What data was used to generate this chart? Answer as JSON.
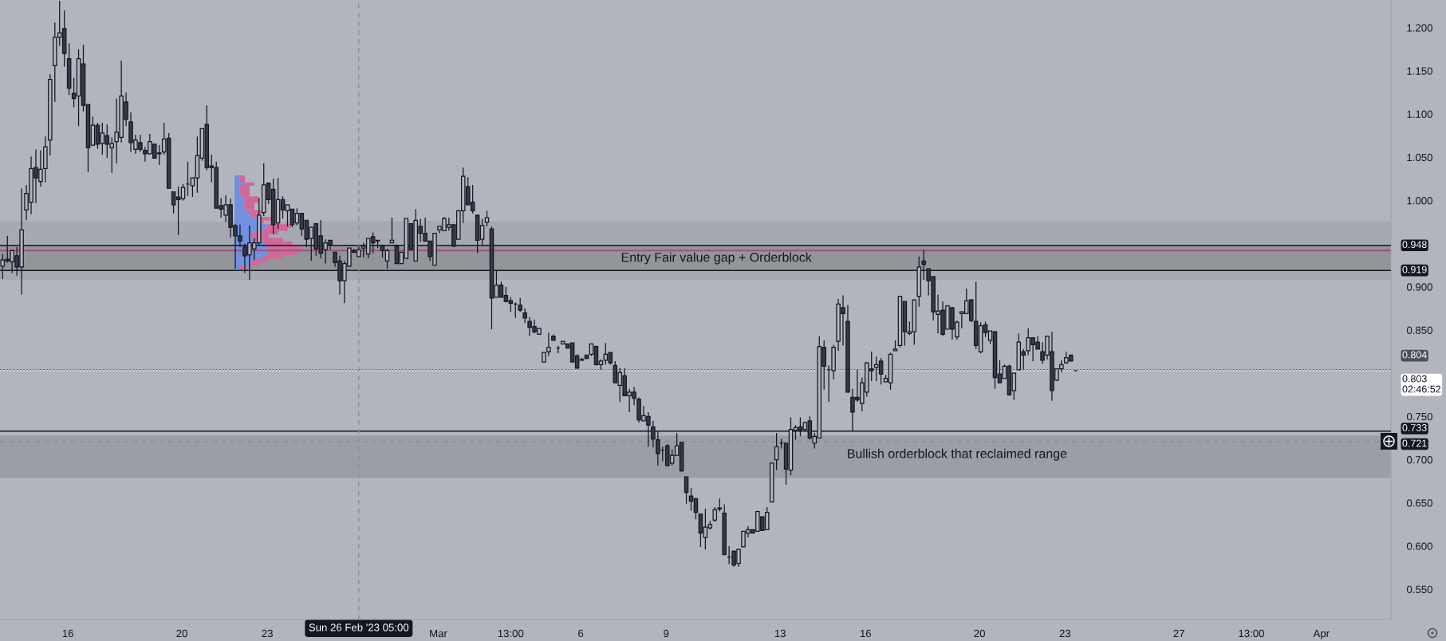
{
  "chart_data": {
    "type": "candlestick",
    "x": [
      "2023-02-13T17:00",
      "2023-02-13T21:00",
      "2023-02-14T01:00",
      "2023-02-14T05:00",
      "2023-02-14T09:00",
      "2023-02-14T13:00",
      "2023-02-14T17:00",
      "2023-02-14T21:00",
      "2023-02-15T01:00",
      "2023-02-15T05:00",
      "2023-02-15T09:00",
      "2023-02-15T13:00",
      "2023-02-15T17:00",
      "2023-02-15T21:00",
      "2023-02-16T01:00",
      "2023-02-16T05:00",
      "2023-02-16T09:00",
      "2023-02-16T13:00",
      "2023-02-16T17:00",
      "2023-02-16T21:00",
      "2023-02-17T01:00",
      "2023-02-17T05:00",
      "2023-02-17T09:00",
      "2023-02-17T13:00",
      "2023-02-17T17:00",
      "2023-02-17T21:00",
      "2023-02-18T01:00",
      "2023-02-18T05:00",
      "2023-02-18T09:00",
      "2023-02-18T13:00",
      "2023-02-18T17:00",
      "2023-02-18T21:00",
      "2023-02-19T01:00",
      "2023-02-19T05:00",
      "2023-02-19T09:00",
      "2023-02-19T13:00",
      "2023-02-19T17:00",
      "2023-02-19T21:00",
      "2023-02-20T01:00",
      "2023-02-20T05:00",
      "2023-02-20T09:00",
      "2023-02-20T13:00",
      "2023-02-20T17:00",
      "2023-02-20T21:00",
      "2023-02-21T01:00",
      "2023-02-21T05:00",
      "2023-02-21T09:00",
      "2023-02-21T13:00",
      "2023-02-21T17:00",
      "2023-02-21T21:00",
      "2023-02-22T01:00",
      "2023-02-22T05:00",
      "2023-02-22T09:00",
      "2023-02-22T13:00",
      "2023-02-22T17:00",
      "2023-02-22T21:00",
      "2023-02-23T01:00",
      "2023-02-23T05:00",
      "2023-02-23T09:00",
      "2023-02-23T13:00",
      "2023-02-23T17:00",
      "2023-02-23T21:00",
      "2023-02-24T01:00",
      "2023-02-24T05:00",
      "2023-02-24T09:00",
      "2023-02-24T13:00",
      "2023-02-24T17:00",
      "2023-02-24T21:00",
      "2023-02-25T01:00",
      "2023-02-25T05:00",
      "2023-02-25T09:00",
      "2023-02-25T13:00",
      "2023-02-25T17:00",
      "2023-02-25T21:00",
      "2023-02-26T01:00",
      "2023-02-26T05:00",
      "2023-02-26T09:00",
      "2023-02-26T13:00",
      "2023-02-26T17:00",
      "2023-02-26T21:00",
      "2023-02-27T01:00",
      "2023-02-27T05:00",
      "2023-02-27T09:00",
      "2023-02-27T13:00",
      "2023-02-27T17:00",
      "2023-02-27T21:00",
      "2023-02-28T01:00",
      "2023-02-28T05:00",
      "2023-02-28T09:00",
      "2023-02-28T13:00",
      "2023-02-28T17:00",
      "2023-02-28T21:00",
      "2023-03-01T01:00",
      "2023-03-01T05:00",
      "2023-03-01T09:00",
      "2023-03-01T13:00",
      "2023-03-01T17:00",
      "2023-03-01T21:00",
      "2023-03-02T01:00",
      "2023-03-02T05:00",
      "2023-03-02T09:00",
      "2023-03-02T13:00",
      "2023-03-02T17:00",
      "2023-03-02T21:00",
      "2023-03-03T01:00",
      "2023-03-03T05:00",
      "2023-03-03T09:00",
      "2023-03-03T13:00",
      "2023-03-03T17:00",
      "2023-03-03T21:00",
      "2023-03-04T01:00",
      "2023-03-04T05:00",
      "2023-03-04T09:00",
      "2023-03-04T13:00",
      "2023-03-04T17:00",
      "2023-03-04T21:00",
      "2023-03-05T01:00",
      "2023-03-05T05:00",
      "2023-03-05T09:00",
      "2023-03-05T13:00",
      "2023-03-05T17:00",
      "2023-03-05T21:00",
      "2023-03-06T01:00",
      "2023-03-06T05:00",
      "2023-03-06T09:00",
      "2023-03-06T13:00",
      "2023-03-06T17:00",
      "2023-03-06T21:00",
      "2023-03-07T01:00",
      "2023-03-07T05:00",
      "2023-03-07T09:00",
      "2023-03-07T13:00",
      "2023-03-07T17:00",
      "2023-03-07T21:00",
      "2023-03-08T01:00",
      "2023-03-08T05:00",
      "2023-03-08T09:00",
      "2023-03-08T13:00",
      "2023-03-08T17:00",
      "2023-03-08T21:00",
      "2023-03-09T01:00",
      "2023-03-09T05:00",
      "2023-03-09T09:00",
      "2023-03-09T13:00",
      "2023-03-09T17:00",
      "2023-03-09T21:00",
      "2023-03-10T01:00",
      "2023-03-10T05:00",
      "2023-03-10T09:00",
      "2023-03-10T13:00",
      "2023-03-10T17:00",
      "2023-03-10T21:00",
      "2023-03-11T01:00",
      "2023-03-11T05:00",
      "2023-03-11T09:00",
      "2023-03-11T13:00",
      "2023-03-11T17:00",
      "2023-03-11T21:00",
      "2023-03-12T01:00",
      "2023-03-12T05:00",
      "2023-03-12T09:00",
      "2023-03-12T13:00",
      "2023-03-12T17:00",
      "2023-03-12T21:00",
      "2023-03-13T01:00",
      "2023-03-13T05:00",
      "2023-03-13T09:00",
      "2023-03-13T13:00",
      "2023-03-13T17:00",
      "2023-03-13T21:00",
      "2023-03-14T01:00",
      "2023-03-14T05:00",
      "2023-03-14T09:00",
      "2023-03-14T13:00",
      "2023-03-14T17:00",
      "2023-03-14T21:00",
      "2023-03-15T01:00",
      "2023-03-15T05:00",
      "2023-03-15T09:00",
      "2023-03-15T13:00",
      "2023-03-15T17:00",
      "2023-03-15T21:00",
      "2023-03-16T01:00",
      "2023-03-16T05:00",
      "2023-03-16T09:00",
      "2023-03-16T13:00",
      "2023-03-16T17:00",
      "2023-03-16T21:00",
      "2023-03-17T01:00",
      "2023-03-17T05:00",
      "2023-03-17T09:00",
      "2023-03-17T13:00",
      "2023-03-17T17:00",
      "2023-03-17T21:00",
      "2023-03-18T01:00",
      "2023-03-18T05:00",
      "2023-03-18T09:00",
      "2023-03-18T13:00",
      "2023-03-18T17:00",
      "2023-03-18T21:00",
      "2023-03-19T01:00",
      "2023-03-19T05:00",
      "2023-03-19T09:00",
      "2023-03-19T13:00",
      "2023-03-19T17:00",
      "2023-03-19T21:00",
      "2023-03-20T01:00",
      "2023-03-20T05:00",
      "2023-03-20T09:00",
      "2023-03-20T13:00",
      "2023-03-20T17:00",
      "2023-03-20T21:00",
      "2023-03-21T01:00",
      "2023-03-21T05:00",
      "2023-03-21T09:00",
      "2023-03-21T13:00",
      "2023-03-21T17:00",
      "2023-03-21T21:00",
      "2023-03-22T01:00",
      "2023-03-22T05:00",
      "2023-03-22T09:00",
      "2023-03-22T13:00",
      "2023-03-22T17:00",
      "2023-03-22T21:00",
      "2023-03-23T01:00",
      "2023-03-23T05:00",
      "2023-03-23T09:00"
    ],
    "ohlc": [
      [
        0.924,
        0.938,
        0.909,
        0.931
      ],
      [
        0.932,
        0.959,
        0.928,
        0.93
      ],
      [
        0.929,
        0.943,
        0.916,
        0.942
      ],
      [
        0.936,
        0.946,
        0.913,
        0.923
      ],
      [
        0.923,
        1.014,
        0.891,
        0.966
      ],
      [
        0.989,
        1.018,
        0.977,
        1.008
      ],
      [
        0.998,
        1.051,
        0.984,
        1.037
      ],
      [
        1.038,
        1.059,
        0.997,
        1.026
      ],
      [
        1.022,
        1.058,
        1.016,
        1.036
      ],
      [
        1.037,
        1.074,
        1.021,
        1.062
      ],
      [
        1.07,
        1.146,
        1.052,
        1.14
      ],
      [
        1.156,
        1.206,
        1.114,
        1.189
      ],
      [
        1.189,
        1.231,
        1.179,
        1.194
      ],
      [
        1.199,
        1.22,
        1.155,
        1.17
      ],
      [
        1.164,
        1.182,
        1.122,
        1.13
      ],
      [
        1.124,
        1.142,
        1.108,
        1.118
      ],
      [
        1.121,
        1.175,
        1.086,
        1.164
      ],
      [
        1.158,
        1.18,
        1.103,
        1.11
      ],
      [
        1.111,
        1.111,
        1.033,
        1.061
      ],
      [
        1.064,
        1.097,
        1.063,
        1.087
      ],
      [
        1.087,
        1.09,
        1.06,
        1.065
      ],
      [
        1.066,
        1.09,
        1.053,
        1.078
      ],
      [
        1.075,
        1.088,
        1.049,
        1.065
      ],
      [
        1.061,
        1.073,
        1.032,
        1.066
      ],
      [
        1.068,
        1.118,
        1.043,
        1.079
      ],
      [
        1.073,
        1.162,
        1.067,
        1.121
      ],
      [
        1.114,
        1.125,
        1.086,
        1.094
      ],
      [
        1.091,
        1.102,
        1.056,
        1.067
      ],
      [
        1.059,
        1.076,
        1.054,
        1.07
      ],
      [
        1.067,
        1.076,
        1.056,
        1.059
      ],
      [
        1.058,
        1.062,
        1.045,
        1.054
      ],
      [
        1.054,
        1.077,
        1.054,
        1.068
      ],
      [
        1.065,
        1.066,
        1.049,
        1.049
      ],
      [
        1.055,
        1.064,
        1.041,
        1.054
      ],
      [
        1.056,
        1.09,
        1.053,
        1.071
      ],
      [
        1.072,
        1.078,
        1.014,
        1.014
      ],
      [
        1.01,
        1.01,
        0.985,
        0.995
      ],
      [
        1.004,
        1.016,
        0.96,
        1.001
      ],
      [
        1.002,
        1.019,
        1.0,
        1.015
      ],
      [
        1.019,
        1.045,
        1.005,
        1.019
      ],
      [
        1.017,
        1.027,
        1.004,
        1.026
      ],
      [
        1.026,
        1.074,
        1.009,
        1.052
      ],
      [
        1.049,
        1.083,
        1.046,
        1.083
      ],
      [
        1.088,
        1.11,
        1.035,
        1.038
      ],
      [
        1.04,
        1.053,
        1.021,
        1.038
      ],
      [
        1.038,
        1.045,
        0.991,
        0.991
      ],
      [
        0.994,
        1.003,
        0.98,
        0.99
      ],
      [
        0.983,
        1.006,
        0.975,
        0.995
      ],
      [
        0.995,
        1.002,
        0.957,
        0.969
      ],
      [
        0.971,
        0.973,
        0.921,
        0.959
      ],
      [
        0.959,
        0.972,
        0.946,
        0.953
      ],
      [
        0.946,
        0.95,
        0.916,
        0.936
      ],
      [
        0.937,
        0.971,
        0.908,
        0.951
      ],
      [
        0.944,
        0.956,
        0.931,
        0.951
      ],
      [
        0.951,
        1.003,
        0.948,
        0.983
      ],
      [
        0.986,
        1.043,
        0.982,
        1.018
      ],
      [
        1.02,
        1.02,
        0.996,
        1.001
      ],
      [
        1.013,
        1.025,
        0.961,
        0.972
      ],
      [
        0.974,
        1.026,
        0.967,
        1.001
      ],
      [
        1.001,
        1.005,
        0.979,
        0.989
      ],
      [
        0.988,
        0.995,
        0.97,
        0.995
      ],
      [
        0.99,
        0.99,
        0.969,
        0.972
      ],
      [
        0.974,
        0.991,
        0.971,
        0.985
      ],
      [
        0.985,
        0.985,
        0.959,
        0.967
      ],
      [
        0.977,
        0.977,
        0.946,
        0.955
      ],
      [
        0.956,
        0.969,
        0.93,
        0.969
      ],
      [
        0.973,
        0.973,
        0.936,
        0.944
      ],
      [
        0.959,
        0.977,
        0.933,
        0.939
      ],
      [
        0.943,
        0.955,
        0.927,
        0.951
      ],
      [
        0.954,
        0.954,
        0.943,
        0.949
      ],
      [
        0.94,
        0.94,
        0.923,
        0.928
      ],
      [
        0.93,
        0.936,
        0.891,
        0.907
      ],
      [
        0.907,
        0.93,
        0.881,
        0.927
      ],
      [
        0.924,
        0.945,
        0.923,
        0.945
      ],
      [
        0.942,
        0.944,
        0.939,
        0.94
      ],
      [
        0.935,
        0.947,
        0.935,
        0.943
      ],
      [
        0.945,
        0.951,
        0.934,
        0.947
      ],
      [
        0.938,
        0.956,
        0.933,
        0.956
      ],
      [
        0.958,
        0.963,
        0.939,
        0.951
      ],
      [
        0.954,
        0.954,
        0.945,
        0.953
      ],
      [
        0.948,
        0.949,
        0.934,
        0.942
      ],
      [
        0.93,
        0.944,
        0.921,
        0.942
      ],
      [
        0.951,
        0.98,
        0.951,
        0.954
      ],
      [
        0.947,
        0.949,
        0.927,
        0.927
      ],
      [
        0.927,
        0.94,
        0.927,
        0.94
      ],
      [
        0.933,
        0.979,
        0.933,
        0.979
      ],
      [
        0.973,
        0.973,
        0.943,
        0.943
      ],
      [
        0.93,
        0.99,
        0.93,
        0.977
      ],
      [
        0.97,
        0.979,
        0.952,
        0.962
      ],
      [
        0.962,
        0.98,
        0.953,
        0.953
      ],
      [
        0.953,
        0.953,
        0.93,
        0.935
      ],
      [
        0.925,
        0.962,
        0.925,
        0.962
      ],
      [
        0.966,
        0.97,
        0.962,
        0.97
      ],
      [
        0.965,
        0.981,
        0.965,
        0.979
      ],
      [
        0.969,
        0.98,
        0.965,
        0.972
      ],
      [
        0.972,
        0.972,
        0.946,
        0.947
      ],
      [
        0.955,
        0.989,
        0.955,
        0.988
      ],
      [
        0.988,
        1.038,
        0.974,
        1.028
      ],
      [
        1.016,
        1.027,
        0.995,
        0.995
      ],
      [
        0.998,
        1.018,
        0.985,
        0.988
      ],
      [
        0.983,
        0.983,
        0.939,
        0.954
      ],
      [
        0.955,
        0.979,
        0.948,
        0.971
      ],
      [
        0.975,
        0.988,
        0.97,
        0.98
      ],
      [
        0.967,
        0.97,
        0.851,
        0.887
      ],
      [
        0.888,
        0.919,
        0.888,
        0.902
      ],
      [
        0.902,
        0.906,
        0.888,
        0.888
      ],
      [
        0.89,
        0.9,
        0.882,
        0.883
      ],
      [
        0.884,
        0.888,
        0.871,
        0.881
      ],
      [
        0.88,
        0.882,
        0.864,
        0.88
      ],
      [
        0.879,
        0.887,
        0.871,
        0.873
      ],
      [
        0.87,
        0.875,
        0.858,
        0.864
      ],
      [
        0.86,
        0.865,
        0.843,
        0.853
      ],
      [
        0.854,
        0.862,
        0.846,
        0.848
      ],
      [
        0.845,
        0.852,
        0.845,
        0.852
      ],
      [
        0.813,
        0.824,
        0.813,
        0.824
      ],
      [
        0.825,
        0.847,
        0.82,
        0.83
      ],
      [
        0.843,
        0.845,
        0.838,
        0.838
      ],
      [
        0.829,
        0.832,
        0.823,
        0.829
      ],
      [
        0.834,
        0.837,
        0.834,
        0.837
      ],
      [
        0.834,
        0.834,
        0.829,
        0.829
      ],
      [
        0.835,
        0.835,
        0.813,
        0.813
      ],
      [
        0.82,
        0.822,
        0.805,
        0.806
      ],
      [
        0.816,
        0.818,
        0.815,
        0.815
      ],
      [
        0.821,
        0.821,
        0.817,
        0.817
      ],
      [
        0.822,
        0.834,
        0.82,
        0.834
      ],
      [
        0.831,
        0.832,
        0.809,
        0.81
      ],
      [
        0.81,
        0.816,
        0.804,
        0.814
      ],
      [
        0.815,
        0.835,
        0.81,
        0.822
      ],
      [
        0.824,
        0.824,
        0.81,
        0.812
      ],
      [
        0.809,
        0.814,
        0.789,
        0.789
      ],
      [
        0.786,
        0.806,
        0.767,
        0.801
      ],
      [
        0.797,
        0.806,
        0.774,
        0.774
      ],
      [
        0.774,
        0.782,
        0.755,
        0.778
      ],
      [
        0.778,
        0.784,
        0.763,
        0.771
      ],
      [
        0.77,
        0.772,
        0.743,
        0.746
      ],
      [
        0.745,
        0.762,
        0.744,
        0.751
      ],
      [
        0.75,
        0.755,
        0.715,
        0.74
      ],
      [
        0.738,
        0.745,
        0.714,
        0.724
      ],
      [
        0.723,
        0.733,
        0.693,
        0.707
      ],
      [
        0.711,
        0.715,
        0.698,
        0.711
      ],
      [
        0.716,
        0.718,
        0.693,
        0.693
      ],
      [
        0.696,
        0.712,
        0.693,
        0.705
      ],
      [
        0.705,
        0.731,
        0.705,
        0.716
      ],
      [
        0.72,
        0.72,
        0.686,
        0.687
      ],
      [
        0.68,
        0.68,
        0.649,
        0.662
      ],
      [
        0.658,
        0.667,
        0.641,
        0.652
      ],
      [
        0.655,
        0.655,
        0.631,
        0.639
      ],
      [
        0.637,
        0.637,
        0.599,
        0.615
      ],
      [
        0.61,
        0.643,
        0.596,
        0.622
      ],
      [
        0.621,
        0.629,
        0.619,
        0.625
      ],
      [
        0.63,
        0.645,
        0.628,
        0.642
      ],
      [
        0.644,
        0.655,
        0.64,
        0.643
      ],
      [
        0.638,
        0.648,
        0.59,
        0.59
      ],
      [
        0.587,
        0.6,
        0.579,
        0.587
      ],
      [
        0.594,
        0.595,
        0.576,
        0.578
      ],
      [
        0.58,
        0.597,
        0.576,
        0.596
      ],
      [
        0.599,
        0.617,
        0.599,
        0.617
      ],
      [
        0.615,
        0.623,
        0.61,
        0.619
      ],
      [
        0.619,
        0.619,
        0.615,
        0.615
      ],
      [
        0.617,
        0.641,
        0.617,
        0.64
      ],
      [
        0.634,
        0.634,
        0.618,
        0.618
      ],
      [
        0.619,
        0.645,
        0.619,
        0.639
      ],
      [
        0.651,
        0.696,
        0.651,
        0.696
      ],
      [
        0.7,
        0.731,
        0.688,
        0.715
      ],
      [
        0.719,
        0.724,
        0.713,
        0.719
      ],
      [
        0.719,
        0.719,
        0.671,
        0.689
      ],
      [
        0.688,
        0.749,
        0.682,
        0.735
      ],
      [
        0.734,
        0.74,
        0.723,
        0.737
      ],
      [
        0.738,
        0.749,
        0.727,
        0.734
      ],
      [
        0.735,
        0.744,
        0.734,
        0.743
      ],
      [
        0.745,
        0.75,
        0.723,
        0.725
      ],
      [
        0.719,
        0.731,
        0.713,
        0.727
      ],
      [
        0.725,
        0.843,
        0.725,
        0.831
      ],
      [
        0.83,
        0.838,
        0.781,
        0.808
      ],
      [
        0.804,
        0.809,
        0.767,
        0.804
      ],
      [
        0.803,
        0.833,
        0.793,
        0.83
      ],
      [
        0.837,
        0.886,
        0.826,
        0.88
      ],
      [
        0.876,
        0.89,
        0.832,
        0.869
      ],
      [
        0.86,
        0.879,
        0.778,
        0.778
      ],
      [
        0.772,
        0.782,
        0.733,
        0.755
      ],
      [
        0.772,
        0.804,
        0.767,
        0.769
      ],
      [
        0.765,
        0.795,
        0.756,
        0.789
      ],
      [
        0.778,
        0.813,
        0.773,
        0.812
      ],
      [
        0.805,
        0.825,
        0.791,
        0.803
      ],
      [
        0.807,
        0.819,
        0.791,
        0.81
      ],
      [
        0.814,
        0.818,
        0.787,
        0.799
      ],
      [
        0.79,
        0.798,
        0.79,
        0.794
      ],
      [
        0.789,
        0.824,
        0.781,
        0.822
      ],
      [
        0.826,
        0.838,
        0.826,
        0.828
      ],
      [
        0.832,
        0.889,
        0.83,
        0.889
      ],
      [
        0.883,
        0.883,
        0.832,
        0.848
      ],
      [
        0.846,
        0.86,
        0.844,
        0.848
      ],
      [
        0.848,
        0.885,
        0.833,
        0.885
      ],
      [
        0.889,
        0.935,
        0.877,
        0.923
      ],
      [
        0.93,
        0.943,
        0.908,
        0.926
      ],
      [
        0.921,
        0.921,
        0.89,
        0.907
      ],
      [
        0.912,
        0.912,
        0.861,
        0.871
      ],
      [
        0.868,
        0.891,
        0.846,
        0.872
      ],
      [
        0.873,
        0.883,
        0.843,
        0.845
      ],
      [
        0.851,
        0.878,
        0.851,
        0.878
      ],
      [
        0.876,
        0.876,
        0.839,
        0.851
      ],
      [
        0.842,
        0.861,
        0.839,
        0.859
      ],
      [
        0.869,
        0.872,
        0.852,
        0.871
      ],
      [
        0.869,
        0.898,
        0.869,
        0.884
      ],
      [
        0.885,
        0.886,
        0.859,
        0.861
      ],
      [
        0.86,
        0.906,
        0.828,
        0.832
      ],
      [
        0.825,
        0.859,
        0.823,
        0.855
      ],
      [
        0.856,
        0.86,
        0.842,
        0.847
      ],
      [
        0.838,
        0.849,
        0.834,
        0.849
      ],
      [
        0.848,
        0.849,
        0.782,
        0.795
      ],
      [
        0.799,
        0.815,
        0.789,
        0.789
      ],
      [
        0.794,
        0.81,
        0.794,
        0.808
      ],
      [
        0.808,
        0.81,
        0.774,
        0.775
      ],
      [
        0.78,
        0.8,
        0.769,
        0.8
      ],
      [
        0.804,
        0.846,
        0.804,
        0.836
      ],
      [
        0.825,
        0.828,
        0.804,
        0.821
      ],
      [
        0.826,
        0.852,
        0.821,
        0.841
      ],
      [
        0.841,
        0.841,
        0.814,
        0.833
      ],
      [
        0.836,
        0.843,
        0.828,
        0.828
      ],
      [
        0.825,
        0.836,
        0.811,
        0.815
      ],
      [
        0.821,
        0.843,
        0.816,
        0.843
      ],
      [
        0.825,
        0.848,
        0.768,
        0.78
      ],
      [
        0.792,
        0.805,
        0.791,
        0.805
      ],
      [
        0.805,
        0.815,
        0.801,
        0.81
      ],
      [
        0.812,
        0.825,
        0.811,
        0.818
      ],
      [
        0.821,
        0.821,
        0.814,
        0.814
      ],
      [
        0.803,
        0.803,
        0.803,
        0.803
      ]
    ],
    "xlim": [
      "2023-02-13T14:47",
      "2023-04-03T10:36"
    ],
    "ylim": [
      0.515,
      1.232
    ],
    "xticks": [
      {
        "value": "2023-02-16",
        "label": "16"
      },
      {
        "value": "2023-02-20",
        "label": "20"
      },
      {
        "value": "2023-02-23",
        "label": "23"
      },
      {
        "value": "2023-03-01",
        "label": "Mar"
      },
      {
        "value": "2023-03-03T13:00",
        "label": "13:00"
      },
      {
        "value": "2023-03-06",
        "label": "6"
      },
      {
        "value": "2023-03-09",
        "label": "9"
      },
      {
        "value": "2023-03-13",
        "label": "13"
      },
      {
        "value": "2023-03-16",
        "label": "16"
      },
      {
        "value": "2023-03-20",
        "label": "20"
      },
      {
        "value": "2023-03-23",
        "label": "23"
      },
      {
        "value": "2023-03-27",
        "label": "27"
      },
      {
        "value": "2023-03-29T13:00",
        "label": "13:00"
      },
      {
        "value": "2023-04-01",
        "label": "Apr"
      }
    ],
    "yticks": [
      {
        "value": 0.55,
        "label": "0.550"
      },
      {
        "value": 0.6,
        "label": "0.600"
      },
      {
        "value": 0.65,
        "label": "0.650"
      },
      {
        "value": 0.7,
        "label": "0.700"
      },
      {
        "value": 0.75,
        "label": "0.750"
      },
      {
        "value": 0.85,
        "label": "0.850"
      },
      {
        "value": 0.9,
        "label": "0.900"
      },
      {
        "value": 1.0,
        "label": "1.000"
      },
      {
        "value": 1.05,
        "label": "1.050"
      },
      {
        "value": 1.1,
        "label": "1.100"
      },
      {
        "value": 1.15,
        "label": "1.150"
      },
      {
        "value": 1.2,
        "label": "1.200"
      }
    ],
    "bands": [
      {
        "axis": "y",
        "from": 0.908,
        "to": 0.976,
        "color": "#a6a9b1"
      },
      {
        "axis": "y",
        "from": 0.919,
        "to": 0.948,
        "color": "#939599"
      },
      {
        "axis": "y",
        "from": 0.679,
        "to": 0.728,
        "color": "#9c9ea5"
      }
    ],
    "ref_lines": [
      {
        "axis": "y",
        "value": 0.942,
        "color": "#a0527a"
      },
      {
        "axis": "y",
        "value": 0.948,
        "label": "0.948",
        "color": "#131722"
      },
      {
        "axis": "y",
        "value": 0.919,
        "label": "0.919",
        "color": "#131722"
      },
      {
        "axis": "y",
        "value": 0.733,
        "label": "0.733",
        "color": "#131722"
      },
      {
        "axis": "y",
        "value": 0.804,
        "label": "0.804",
        "color": "#4c505c",
        "line_style": "dotted"
      },
      {
        "axis": "y",
        "value": 0.803,
        "label": "0.803\n02:46:52",
        "color": "#ffffff",
        "line_style": "dotted"
      },
      {
        "axis": "y",
        "value": 0.721,
        "label": "0.721",
        "color": "#8a8d96",
        "line_style": "dashed"
      },
      {
        "axis": "x",
        "value": "2023-02-26T05:00",
        "label": "Sun 26 Feb '23 05:00",
        "color": "#8a8d96",
        "line_style": "dashed"
      }
    ],
    "annotations": [
      "Entry Fair value gap + Orderblock",
      "Bullish orderblock that reclaimed range"
    ]
  }
}
